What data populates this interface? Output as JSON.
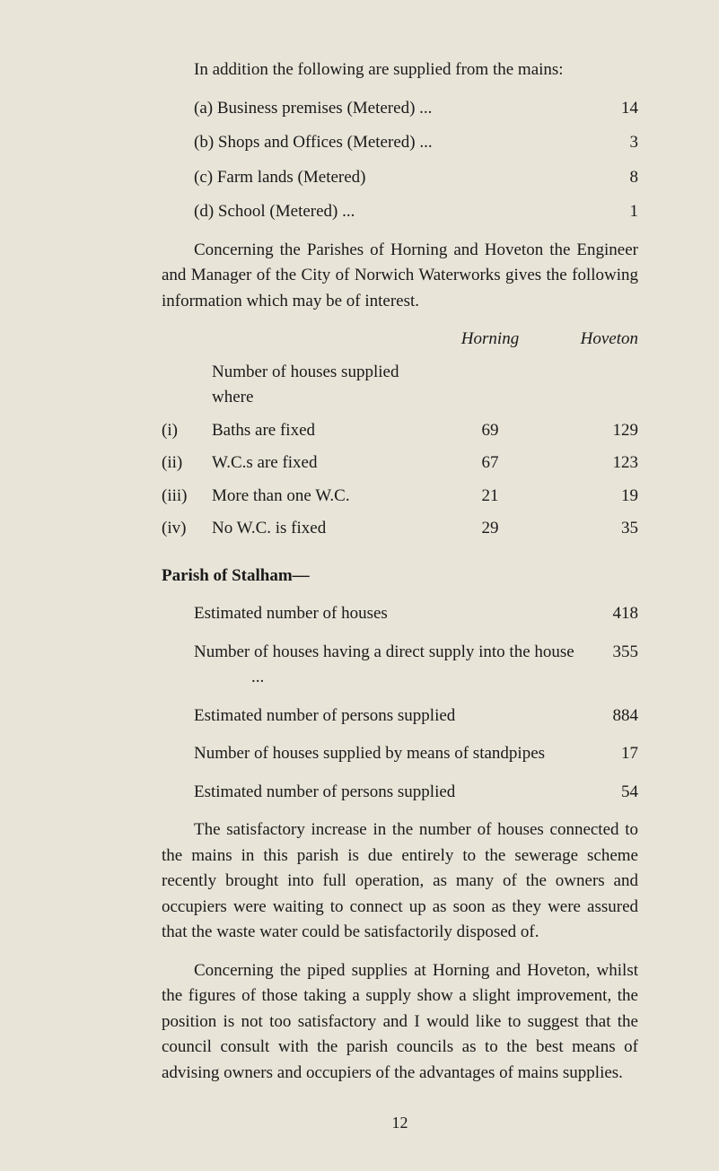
{
  "intro": "In addition the following are supplied from the mains:",
  "mainsList": [
    {
      "label": "(a)  Business premises (Metered) ...",
      "value": "14"
    },
    {
      "label": "(b)  Shops and Offices (Metered) ...",
      "value": "3"
    },
    {
      "label": "(c)  Farm lands (Metered)",
      "value": "8"
    },
    {
      "label": "(d)  School (Metered)   ...",
      "value": "1"
    }
  ],
  "para2": "Concerning the Parishes of Horning and Hoveton the Engineer and Manager of the City of Norwich Water­works gives the following information which may be of interest.",
  "tableHeader": {
    "lead": "Number of houses supplied where",
    "col1": "Horning",
    "col2": "Hoveton"
  },
  "tableRows": [
    {
      "a": "(i)",
      "b": "Baths are fixed",
      "c": "69",
      "d": "129"
    },
    {
      "a": "(ii)",
      "b": "W.C.s are fixed",
      "c": "67",
      "d": "123"
    },
    {
      "a": "(iii)",
      "b": "More than one W.C.",
      "c": "21",
      "d": "19"
    },
    {
      "a": "(iv)",
      "b": "No W.C. is fixed",
      "c": "29",
      "d": "35"
    }
  ],
  "stalhamHeading": "Parish of Stalham—",
  "stalhamItems": [
    {
      "label": "Estimated number of houses",
      "value": "418"
    },
    {
      "label": "Number of houses having a direct supply into the house ...",
      "value": "355"
    },
    {
      "label": "Estimated number of persons supplied",
      "value": "884"
    },
    {
      "label": "Number of houses supplied by means of stand­pipes",
      "value": "17"
    },
    {
      "label": "Estimated number of persons supplied",
      "value": "54"
    }
  ],
  "para3": "The satisfactory increase in the number of houses con­nected to the mains in this parish is due entirely to the sewerage scheme recently brought into full operation, as many of the owners and occupiers were waiting to con­nect up as soon as they were assured that the waste water could be satisfactorily disposed of.",
  "para4": "Concerning the piped supplies at Horning and Hove­ton, whilst the figures of those taking a supply show a slight improvement, the position is not too satisfactory and I would like to suggest that the council consult with the parish councils as to the best means of advising owners and occupiers of the advantages of mains supplies.",
  "pageNumber": "12"
}
